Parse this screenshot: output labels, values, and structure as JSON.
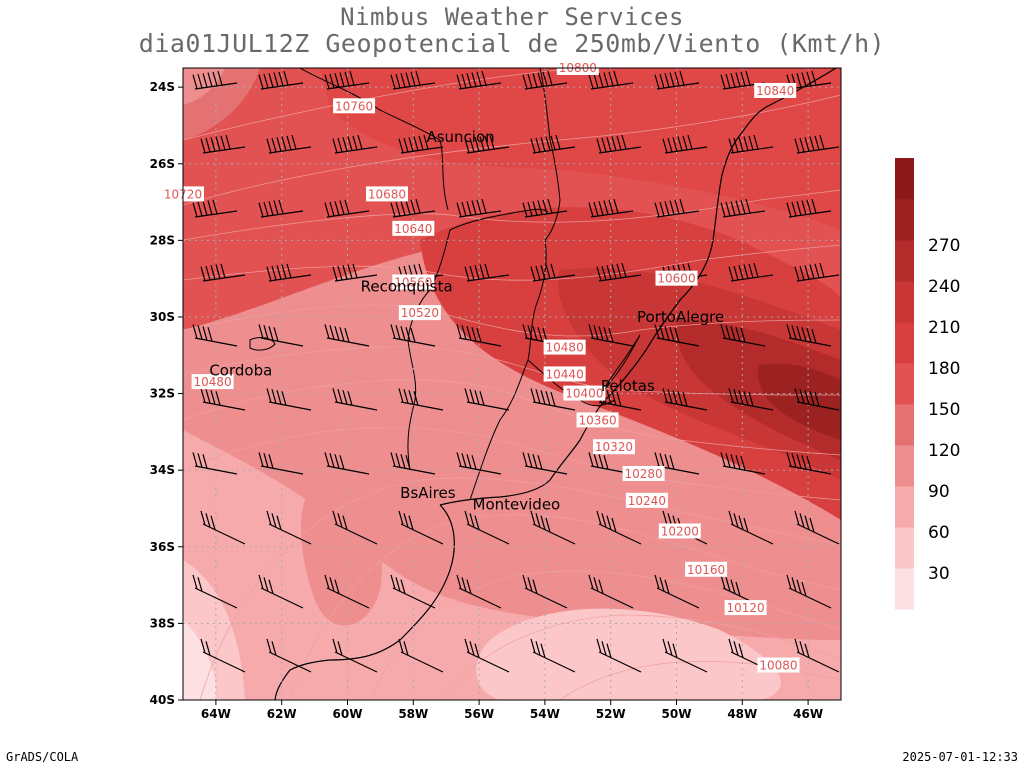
{
  "header": {
    "title_line1": "Nimbus Weather Services",
    "title_line2": "dia01JUL12Z Geopotencial de 250mb/Viento (Kmt/h)"
  },
  "footer": {
    "left": "GrADS/COLA",
    "right": "2025-07-01-12:33"
  },
  "map": {
    "lat_labels": [
      "24S",
      "26S",
      "28S",
      "30S",
      "32S",
      "34S",
      "36S",
      "38S",
      "40S"
    ],
    "lat_values": [
      -24,
      -26,
      -28,
      -30,
      -32,
      -34,
      -36,
      -38,
      -40
    ],
    "lon_labels": [
      "64W",
      "62W",
      "60W",
      "58W",
      "56W",
      "54W",
      "52W",
      "50W",
      "48W",
      "46W"
    ],
    "lon_values": [
      -64,
      -62,
      -60,
      -58,
      -56,
      -54,
      -52,
      -50,
      -48,
      -46
    ],
    "extent": {
      "lon_min": -65,
      "lon_max": -45,
      "lat_min": -40,
      "lat_max": -23.5
    },
    "cities": [
      {
        "name": "Asuncion",
        "lon": -57.6,
        "lat": -25.3
      },
      {
        "name": "Reconquista",
        "lon": -59.6,
        "lat": -29.2
      },
      {
        "name": "Cordoba",
        "lon": -64.2,
        "lat": -31.4
      },
      {
        "name": "PortoAlegre",
        "lon": -51.2,
        "lat": -30.0
      },
      {
        "name": "Pelotas",
        "lon": -52.3,
        "lat": -31.8
      },
      {
        "name": "BsAires",
        "lon": -58.4,
        "lat": -34.6
      },
      {
        "name": "Montevideo",
        "lon": -56.2,
        "lat": -34.9
      }
    ],
    "contour_labels": [
      {
        "text": "10800",
        "lon": -53.0,
        "lat": -23.5
      },
      {
        "text": "10840",
        "lon": -47.0,
        "lat": -24.1
      },
      {
        "text": "10760",
        "lon": -59.8,
        "lat": -24.5
      },
      {
        "text": "10720",
        "lon": -65.0,
        "lat": -26.8
      },
      {
        "text": "10680",
        "lon": -58.8,
        "lat": -26.8
      },
      {
        "text": "10640",
        "lon": -58.0,
        "lat": -27.7
      },
      {
        "text": "10600",
        "lon": -50.0,
        "lat": -29.0
      },
      {
        "text": "10560",
        "lon": -58.0,
        "lat": -29.1
      },
      {
        "text": "10520",
        "lon": -57.8,
        "lat": -29.9
      },
      {
        "text": "10480",
        "lon": -53.4,
        "lat": -30.8
      },
      {
        "text": "10480",
        "lon": -64.1,
        "lat": -31.7
      },
      {
        "text": "10440",
        "lon": -53.4,
        "lat": -31.5
      },
      {
        "text": "10400",
        "lon": -52.8,
        "lat": -32.0
      },
      {
        "text": "10360",
        "lon": -52.4,
        "lat": -32.7
      },
      {
        "text": "10320",
        "lon": -51.9,
        "lat": -33.4
      },
      {
        "text": "10280",
        "lon": -51.0,
        "lat": -34.1
      },
      {
        "text": "10240",
        "lon": -50.9,
        "lat": -34.8
      },
      {
        "text": "10200",
        "lon": -49.9,
        "lat": -35.6
      },
      {
        "text": "10160",
        "lon": -49.1,
        "lat": -36.6
      },
      {
        "text": "10120",
        "lon": -47.9,
        "lat": -37.6
      },
      {
        "text": "10080",
        "lon": -46.9,
        "lat": -39.1
      }
    ],
    "colorbar": {
      "labels": [
        "30",
        "60",
        "90",
        "120",
        "150",
        "180",
        "210",
        "240",
        "270"
      ],
      "colors": [
        "#fce0e2",
        "#fcc7c9",
        "#f7aaac",
        "#ee8e8f",
        "#e47272",
        "#e35252",
        "#d84040",
        "#c83636",
        "#b32b2b",
        "#9c2222",
        "#8c1919"
      ]
    }
  }
}
